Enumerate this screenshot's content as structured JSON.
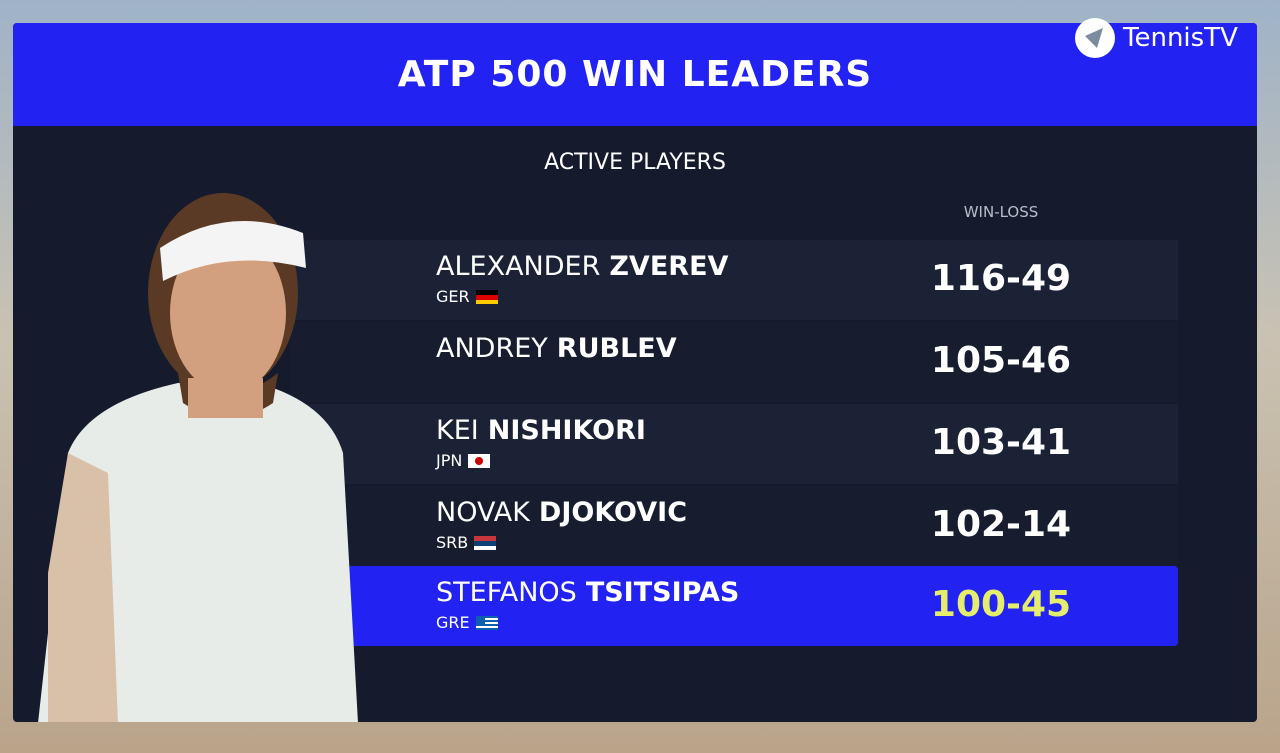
{
  "header": {
    "title": "ATP 500 WIN LEADERS"
  },
  "brand": "TennisTV",
  "subtitle": "ACTIVE PLAYERS",
  "column_header": "WIN-LOSS",
  "rows": [
    {
      "first_name": "ALEXANDER",
      "last_name": "ZVEREV",
      "country": "GER",
      "record": "116-49"
    },
    {
      "first_name": "ANDREY",
      "last_name": "RUBLEV",
      "record": "105-46"
    },
    {
      "first_name": "KEI",
      "last_name": "NISHIKORI",
      "country": "JPN",
      "record": "103-41"
    },
    {
      "first_name": "NOVAK",
      "last_name": "DJOKOVIC",
      "country": "SRB",
      "record": "102-14"
    },
    {
      "first_name": "STEFANOS",
      "last_name": "TSITSIPAS",
      "country": "GRE",
      "record": "100-45"
    }
  ]
}
